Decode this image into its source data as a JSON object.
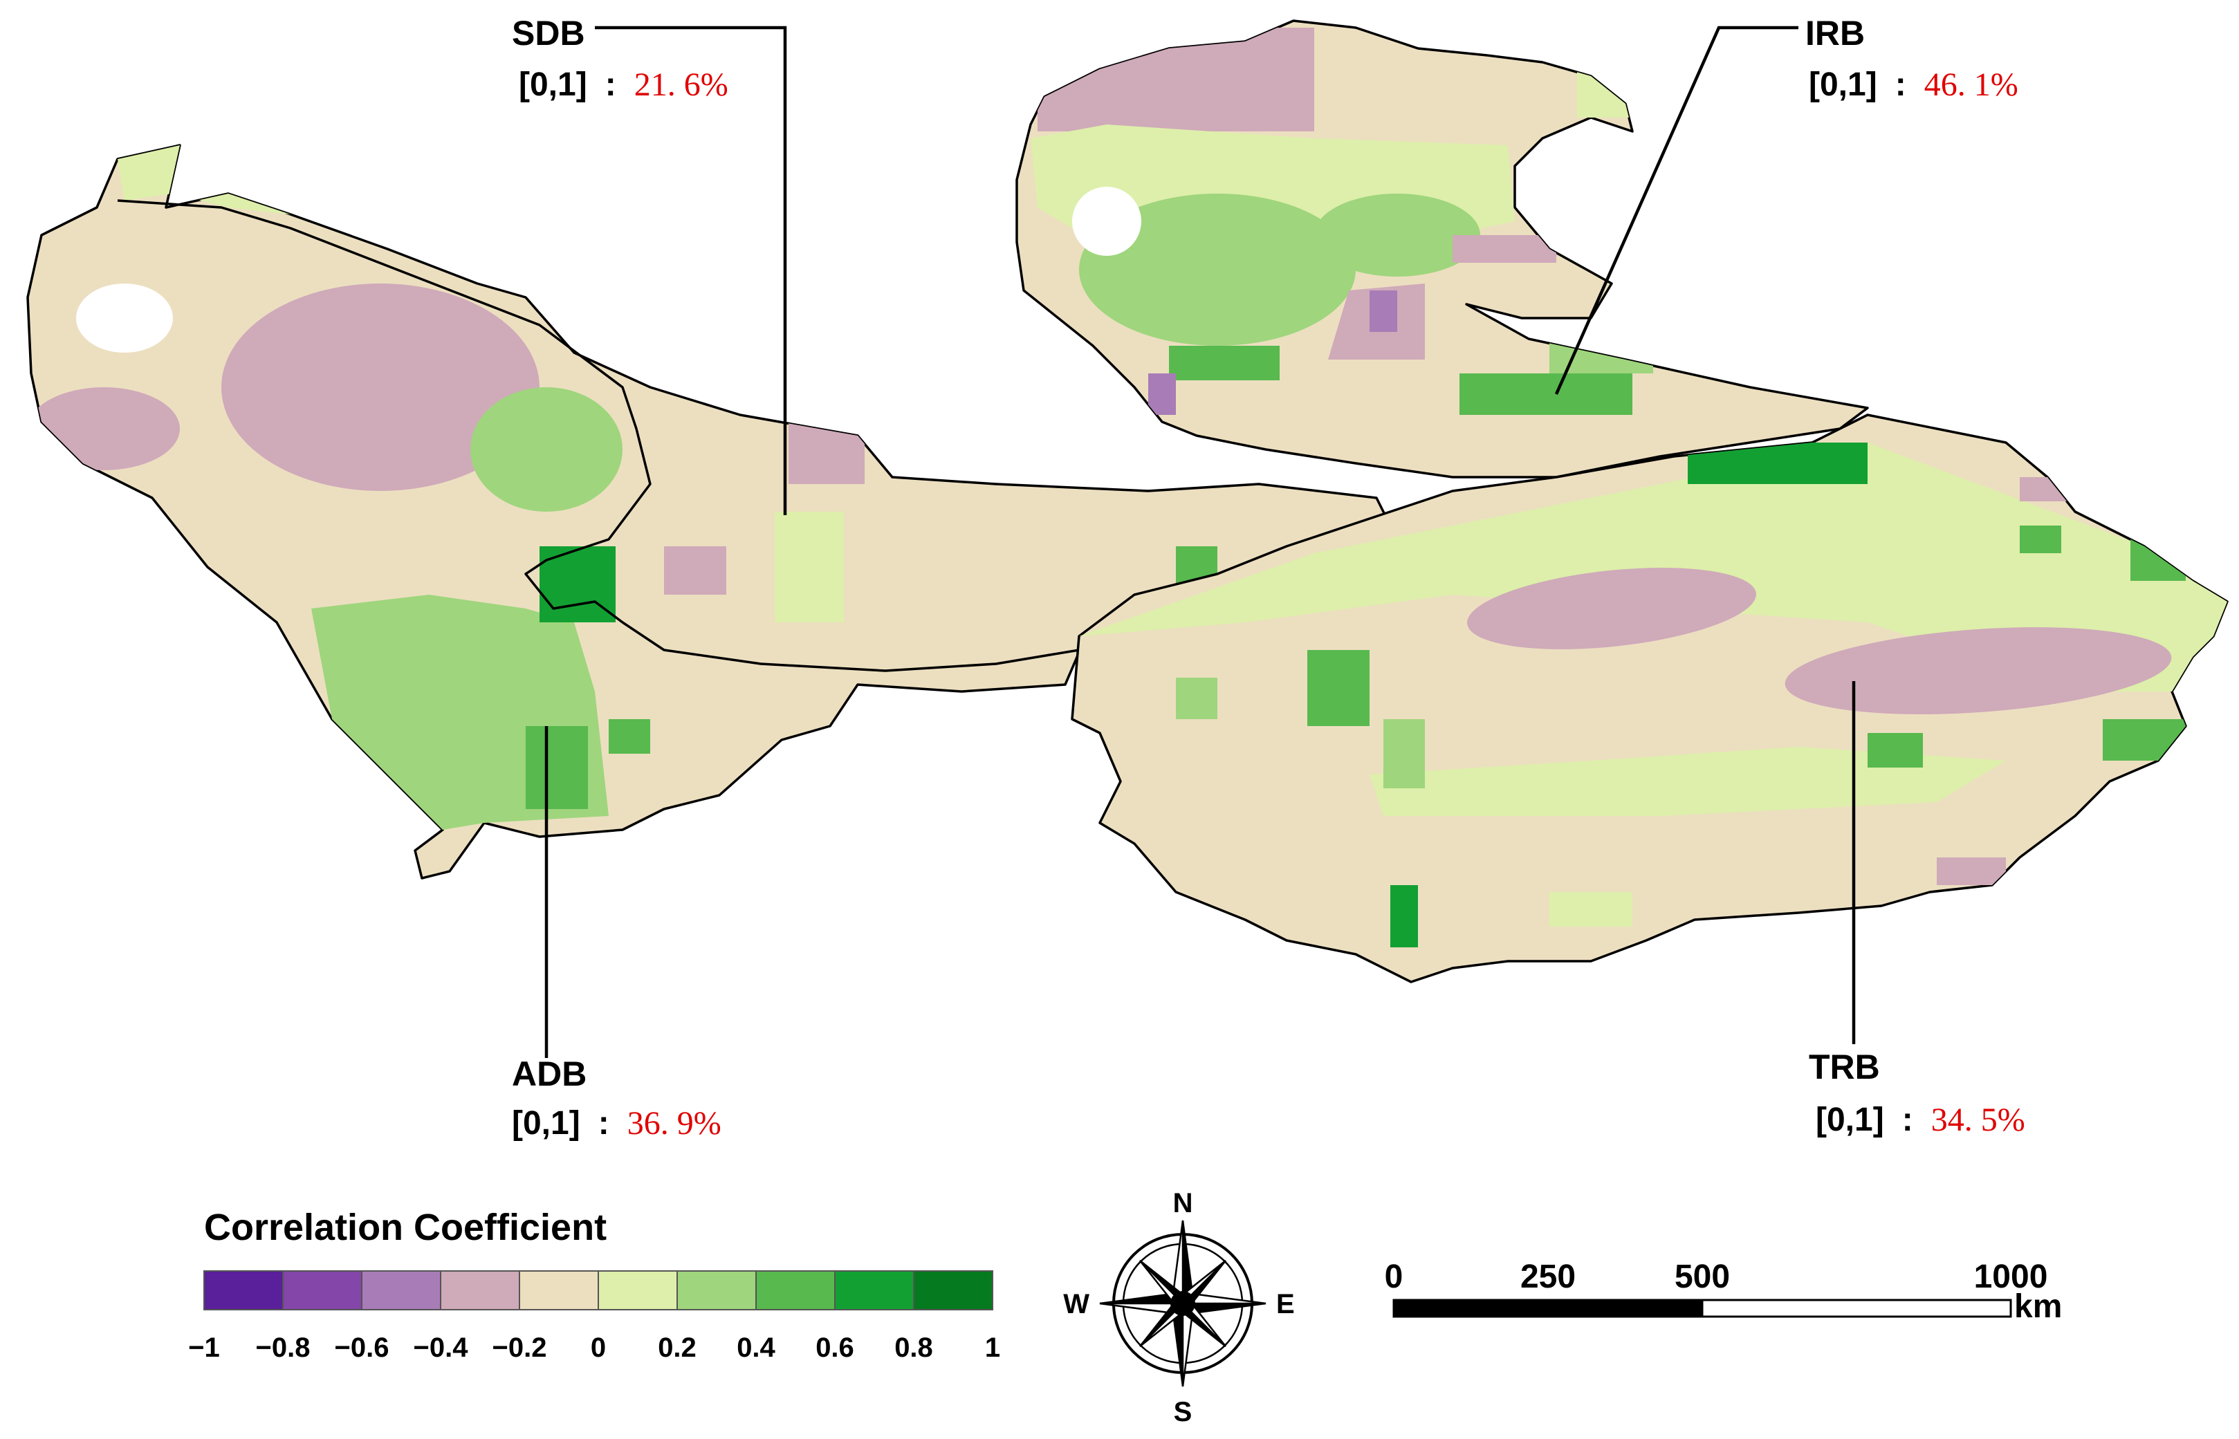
{
  "basins": [
    {
      "name": "SDB",
      "range_label": "[0,1]",
      "sep": ":",
      "percent": "21. 6%"
    },
    {
      "name": "IRB",
      "range_label": "[0,1]",
      "sep": ":",
      "percent": "46. 1%"
    },
    {
      "name": "ADB",
      "range_label": "[0,1]",
      "sep": ":",
      "percent": "36. 9%"
    },
    {
      "name": "TRB",
      "range_label": "[0,1]",
      "sep": ":",
      "percent": "34. 5%"
    }
  ],
  "legend": {
    "title": "Correlation Coefficient",
    "colors": [
      "#5a1f9a",
      "#8446a8",
      "#a87cb6",
      "#cfaab9",
      "#ecdfc0",
      "#ddefaa",
      "#9fd57c",
      "#58b94e",
      "#13a032",
      "#067a1e"
    ],
    "ticks": [
      "−1",
      "−0.8",
      "−0.6",
      "−0.4",
      "−0.2",
      "0",
      "0.2",
      "0.4",
      "0.6",
      "0.8",
      "1"
    ]
  },
  "compass": {
    "n": "N",
    "s": "S",
    "e": "E",
    "w": "W"
  },
  "scalebar": {
    "ticks": [
      "0",
      "250",
      "500",
      "1000"
    ],
    "unit": "km"
  },
  "colors": {
    "base": "#ecdfc0",
    "label_percent": "#e00000"
  }
}
